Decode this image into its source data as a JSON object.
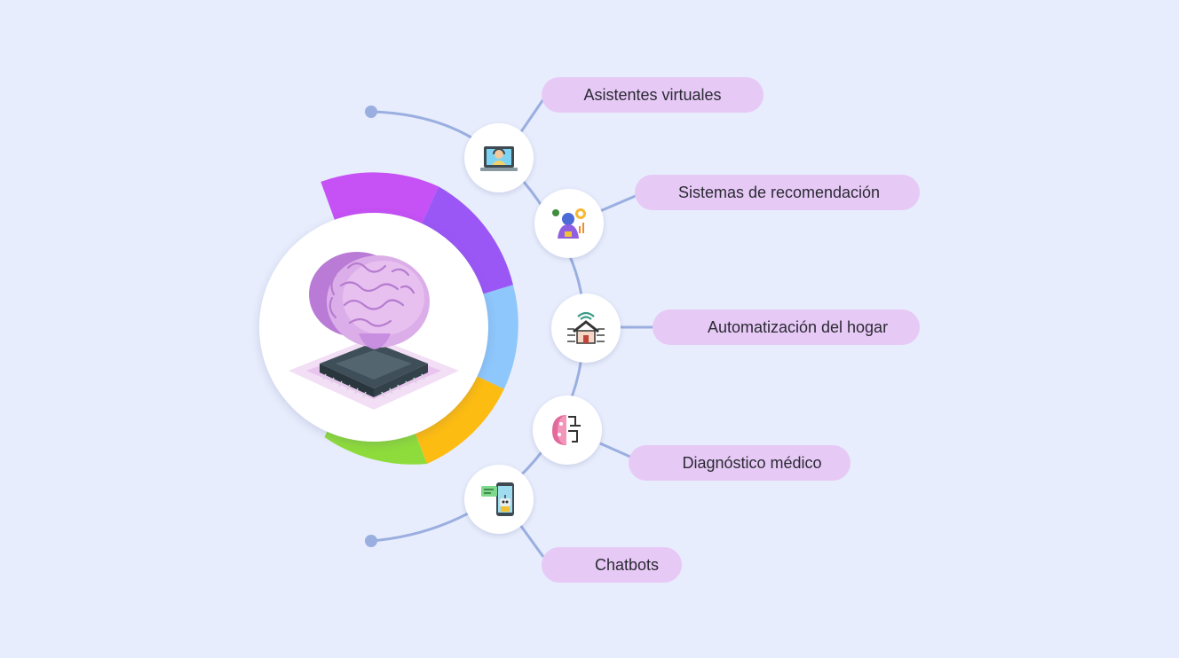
{
  "colors": {
    "background": "#e7edfc",
    "pill": "#e7c9f6",
    "connector": "#9aaee0",
    "ring_segments": [
      "#c651f5",
      "#9b57f5",
      "#8ec7fb",
      "#fdbc12",
      "#8edb3c"
    ]
  },
  "hub": {
    "icon": "ai-brain-chip-icon"
  },
  "items": [
    {
      "label": "Asistentes virtuales",
      "icon": "virtual-assistant-laptop-icon"
    },
    {
      "label": "Sistemas de recomendación",
      "icon": "recommendation-robot-icon"
    },
    {
      "label": "Automatización del hogar",
      "icon": "smart-home-icon"
    },
    {
      "label": "Diagnóstico médico",
      "icon": "medical-brain-circuit-icon"
    },
    {
      "label": "Chatbots",
      "icon": "chatbot-phone-icon"
    }
  ]
}
